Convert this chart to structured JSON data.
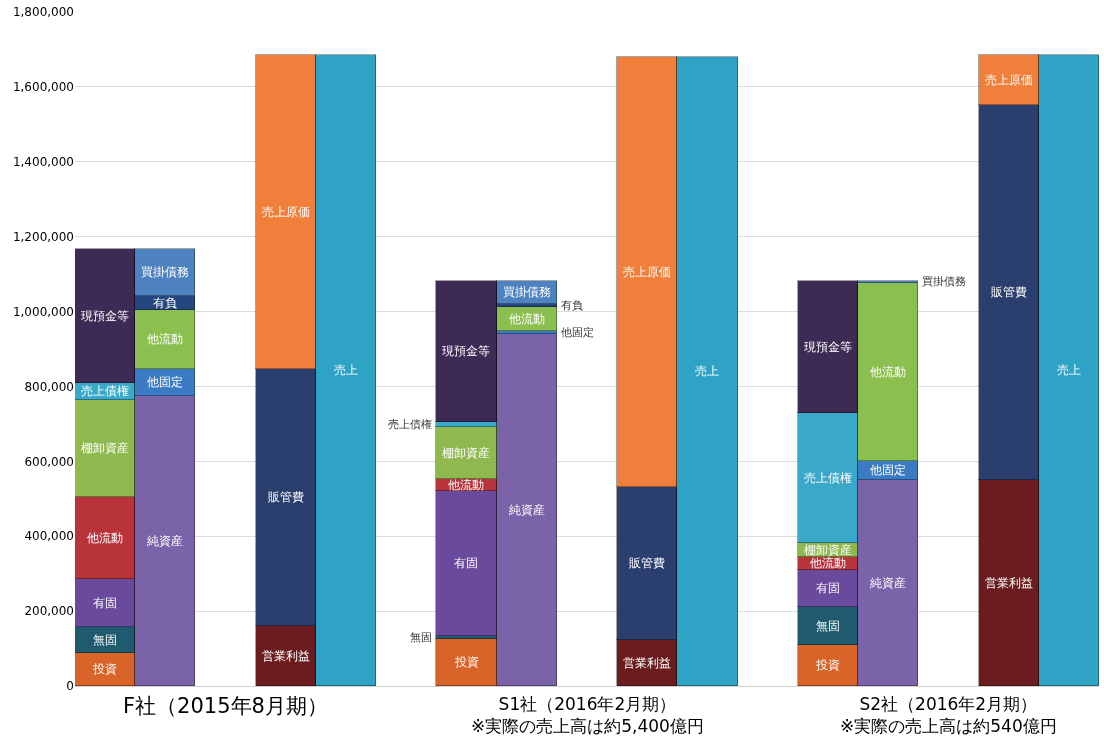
{
  "chart_data": {
    "type": "bar",
    "stacked": true,
    "categories": [
      null,
      null,
      null,
      null,
      null,
      null,
      null,
      null,
      null,
      null,
      null,
      null,
      null,
      null,
      null,
      null,
      null
    ],
    "series": [
      {
        "name": "投資",
        "color": "#d9642a",
        "values": [
          89000,
          null,
          null,
          null,
          null,
          null,
          125000,
          null,
          null,
          null,
          null,
          null,
          109000,
          null,
          null,
          null,
          null
        ]
      },
      {
        "name": "無固",
        "color": "#1f5a6e",
        "values": [
          68000,
          null,
          null,
          null,
          null,
          null,
          8000,
          null,
          null,
          null,
          null,
          null,
          102000,
          null,
          null,
          null,
          null
        ]
      },
      {
        "name": "有固",
        "color": "#6a4a9c",
        "values": [
          130000,
          null,
          null,
          null,
          null,
          null,
          388000,
          null,
          null,
          null,
          null,
          null,
          99000,
          null,
          null,
          null,
          null
        ]
      },
      {
        "name": "他流動",
        "color": "#b8343a",
        "values": [
          219000,
          null,
          null,
          null,
          null,
          null,
          31000,
          null,
          null,
          null,
          null,
          null,
          34000,
          null,
          null,
          null,
          null
        ]
      },
      {
        "name": "棚卸資産",
        "color": "#8fb84e",
        "values": [
          259000,
          null,
          null,
          null,
          null,
          null,
          141000,
          null,
          null,
          null,
          null,
          null,
          37000,
          null,
          null,
          null,
          null
        ]
      },
      {
        "name": "売上債権",
        "color": "#3aa8c8",
        "values": [
          43000,
          null,
          null,
          null,
          null,
          null,
          13000,
          null,
          null,
          null,
          null,
          null,
          347000,
          null,
          null,
          null,
          null
        ]
      },
      {
        "name": "現預金等",
        "color": "#3d2a55",
        "values": [
          358000,
          null,
          null,
          null,
          null,
          null,
          375000,
          null,
          null,
          null,
          null,
          null,
          353000,
          null,
          null,
          null,
          null
        ]
      },
      {
        "name": "純資産",
        "color": "#7a63a8",
        "values": [
          null,
          774000,
          null,
          null,
          null,
          null,
          null,
          940000,
          null,
          null,
          null,
          null,
          null,
          551000,
          null,
          null,
          null
        ]
      },
      {
        "name": "他固定",
        "color": "#3b7bc4",
        "values": [
          null,
          73000,
          null,
          null,
          null,
          null,
          null,
          9000,
          null,
          null,
          null,
          null,
          null,
          51000,
          null,
          null,
          null
        ]
      },
      {
        "name": "他流動",
        "color": "#8bbf4f",
        "values": [
          null,
          157000,
          null,
          null,
          null,
          null,
          null,
          62000,
          null,
          null,
          null,
          null,
          null,
          475000,
          null,
          null,
          null
        ]
      },
      {
        "name": "有負",
        "color": "#25477f",
        "values": [
          null,
          37000,
          null,
          null,
          null,
          null,
          null,
          9000,
          null,
          null,
          null,
          null,
          null,
          null,
          null,
          null,
          null
        ]
      },
      {
        "name": "買掛債務",
        "color": "#4e82c0",
        "values": [
          null,
          126000,
          null,
          null,
          null,
          null,
          null,
          61000,
          null,
          null,
          null,
          null,
          null,
          4000,
          null,
          null,
          null
        ]
      },
      {
        "name": "営業利益",
        "color": "#6a1c1e",
        "values": [
          null,
          null,
          null,
          161000,
          null,
          null,
          null,
          null,
          null,
          122000,
          null,
          null,
          null,
          null,
          null,
          549000,
          null
        ]
      },
      {
        "name": "販管費",
        "color": "#2a3f6e",
        "values": [
          null,
          null,
          null,
          686000,
          null,
          null,
          null,
          null,
          null,
          410000,
          null,
          null,
          null,
          null,
          null,
          1002000,
          null
        ]
      },
      {
        "name": "売上原価",
        "color": "#ef7f3a",
        "values": [
          null,
          null,
          null,
          837000,
          null,
          null,
          null,
          null,
          null,
          1148000,
          null,
          null,
          null,
          null,
          null,
          133000,
          null
        ]
      },
      {
        "name": "売上",
        "color": "#2fa3c6",
        "values": [
          null,
          null,
          null,
          null,
          1684000,
          null,
          null,
          null,
          null,
          null,
          1680000,
          null,
          null,
          null,
          null,
          null,
          1684000
        ]
      }
    ],
    "ylim": [
      0,
      1800000
    ],
    "yticks": [
      {
        "value": 0,
        "label": "0"
      },
      {
        "value": 200000,
        "label": "200,000"
      },
      {
        "value": 400000,
        "label": "400,000"
      },
      {
        "value": 600000,
        "label": "600,000"
      },
      {
        "value": 800000,
        "label": "800,000"
      },
      {
        "value": 1000000,
        "label": "1,000,000"
      },
      {
        "value": 1200000,
        "label": "1,200,000"
      },
      {
        "value": 1400000,
        "label": "1,400,000"
      },
      {
        "value": 1600000,
        "label": "1,600,000"
      },
      {
        "value": 1800000,
        "label": "1,800,000"
      }
    ],
    "grid": "y",
    "legend": false,
    "annotations": [
      "F社（2015年8月期）",
      "S1社（2016年2月期）\n※実際の売上高は約5,400億円",
      "S2社（2016年2月期）\n※実際の売上高は約540億円"
    ]
  }
}
